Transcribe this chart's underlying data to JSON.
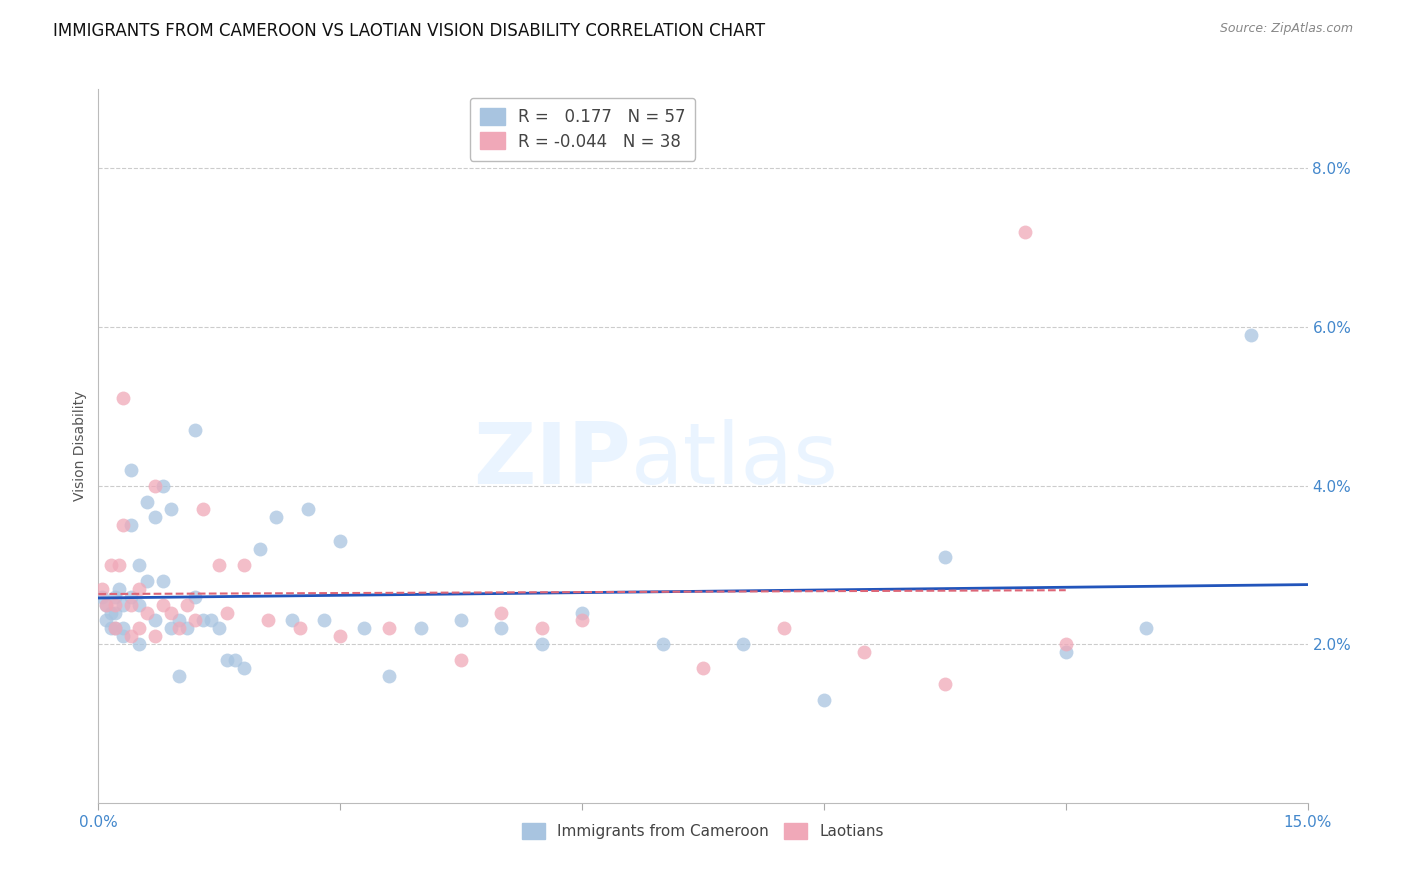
{
  "title": "IMMIGRANTS FROM CAMEROON VS LAOTIAN VISION DISABILITY CORRELATION CHART",
  "source": "Source: ZipAtlas.com",
  "ylabel": "Vision Disability",
  "xlabel": "",
  "xlim": [
    0.0,
    0.15
  ],
  "ylim": [
    0.0,
    0.09
  ],
  "r_blue": 0.177,
  "n_blue": 57,
  "r_pink": -0.044,
  "n_pink": 38,
  "blue_color": "#a8c4e0",
  "pink_color": "#f0a8b8",
  "line_blue": "#2255bb",
  "line_pink": "#dd6677",
  "watermark_zip": "ZIP",
  "watermark_atlas": "atlas",
  "grid_color": "#cccccc",
  "bg_color": "#ffffff",
  "tick_label_color": "#4488cc",
  "title_color": "#111111",
  "title_fontsize": 12,
  "axis_label_fontsize": 10,
  "blue_scatter_x": [
    0.0005,
    0.001,
    0.001,
    0.0015,
    0.0015,
    0.002,
    0.002,
    0.002,
    0.0025,
    0.003,
    0.003,
    0.003,
    0.004,
    0.004,
    0.004,
    0.005,
    0.005,
    0.005,
    0.006,
    0.006,
    0.007,
    0.007,
    0.008,
    0.008,
    0.009,
    0.009,
    0.01,
    0.01,
    0.011,
    0.012,
    0.012,
    0.013,
    0.014,
    0.015,
    0.016,
    0.017,
    0.018,
    0.02,
    0.022,
    0.024,
    0.026,
    0.028,
    0.03,
    0.033,
    0.036,
    0.04,
    0.045,
    0.05,
    0.055,
    0.06,
    0.07,
    0.08,
    0.09,
    0.105,
    0.12,
    0.13,
    0.143
  ],
  "blue_scatter_y": [
    0.026,
    0.025,
    0.023,
    0.024,
    0.022,
    0.026,
    0.024,
    0.022,
    0.027,
    0.025,
    0.022,
    0.021,
    0.042,
    0.035,
    0.026,
    0.03,
    0.025,
    0.02,
    0.038,
    0.028,
    0.036,
    0.023,
    0.04,
    0.028,
    0.037,
    0.022,
    0.023,
    0.016,
    0.022,
    0.047,
    0.026,
    0.023,
    0.023,
    0.022,
    0.018,
    0.018,
    0.017,
    0.032,
    0.036,
    0.023,
    0.037,
    0.023,
    0.033,
    0.022,
    0.016,
    0.022,
    0.023,
    0.022,
    0.02,
    0.024,
    0.02,
    0.02,
    0.013,
    0.031,
    0.019,
    0.022,
    0.059
  ],
  "pink_scatter_x": [
    0.0005,
    0.001,
    0.0015,
    0.002,
    0.002,
    0.0025,
    0.003,
    0.003,
    0.004,
    0.004,
    0.005,
    0.005,
    0.006,
    0.007,
    0.007,
    0.008,
    0.009,
    0.01,
    0.011,
    0.012,
    0.013,
    0.015,
    0.016,
    0.018,
    0.021,
    0.025,
    0.03,
    0.036,
    0.045,
    0.05,
    0.055,
    0.06,
    0.075,
    0.085,
    0.095,
    0.105,
    0.115,
    0.12
  ],
  "pink_scatter_y": [
    0.027,
    0.025,
    0.03,
    0.025,
    0.022,
    0.03,
    0.051,
    0.035,
    0.025,
    0.021,
    0.027,
    0.022,
    0.024,
    0.04,
    0.021,
    0.025,
    0.024,
    0.022,
    0.025,
    0.023,
    0.037,
    0.03,
    0.024,
    0.03,
    0.023,
    0.022,
    0.021,
    0.022,
    0.018,
    0.024,
    0.022,
    0.023,
    0.017,
    0.022,
    0.019,
    0.015,
    0.072,
    0.02
  ]
}
